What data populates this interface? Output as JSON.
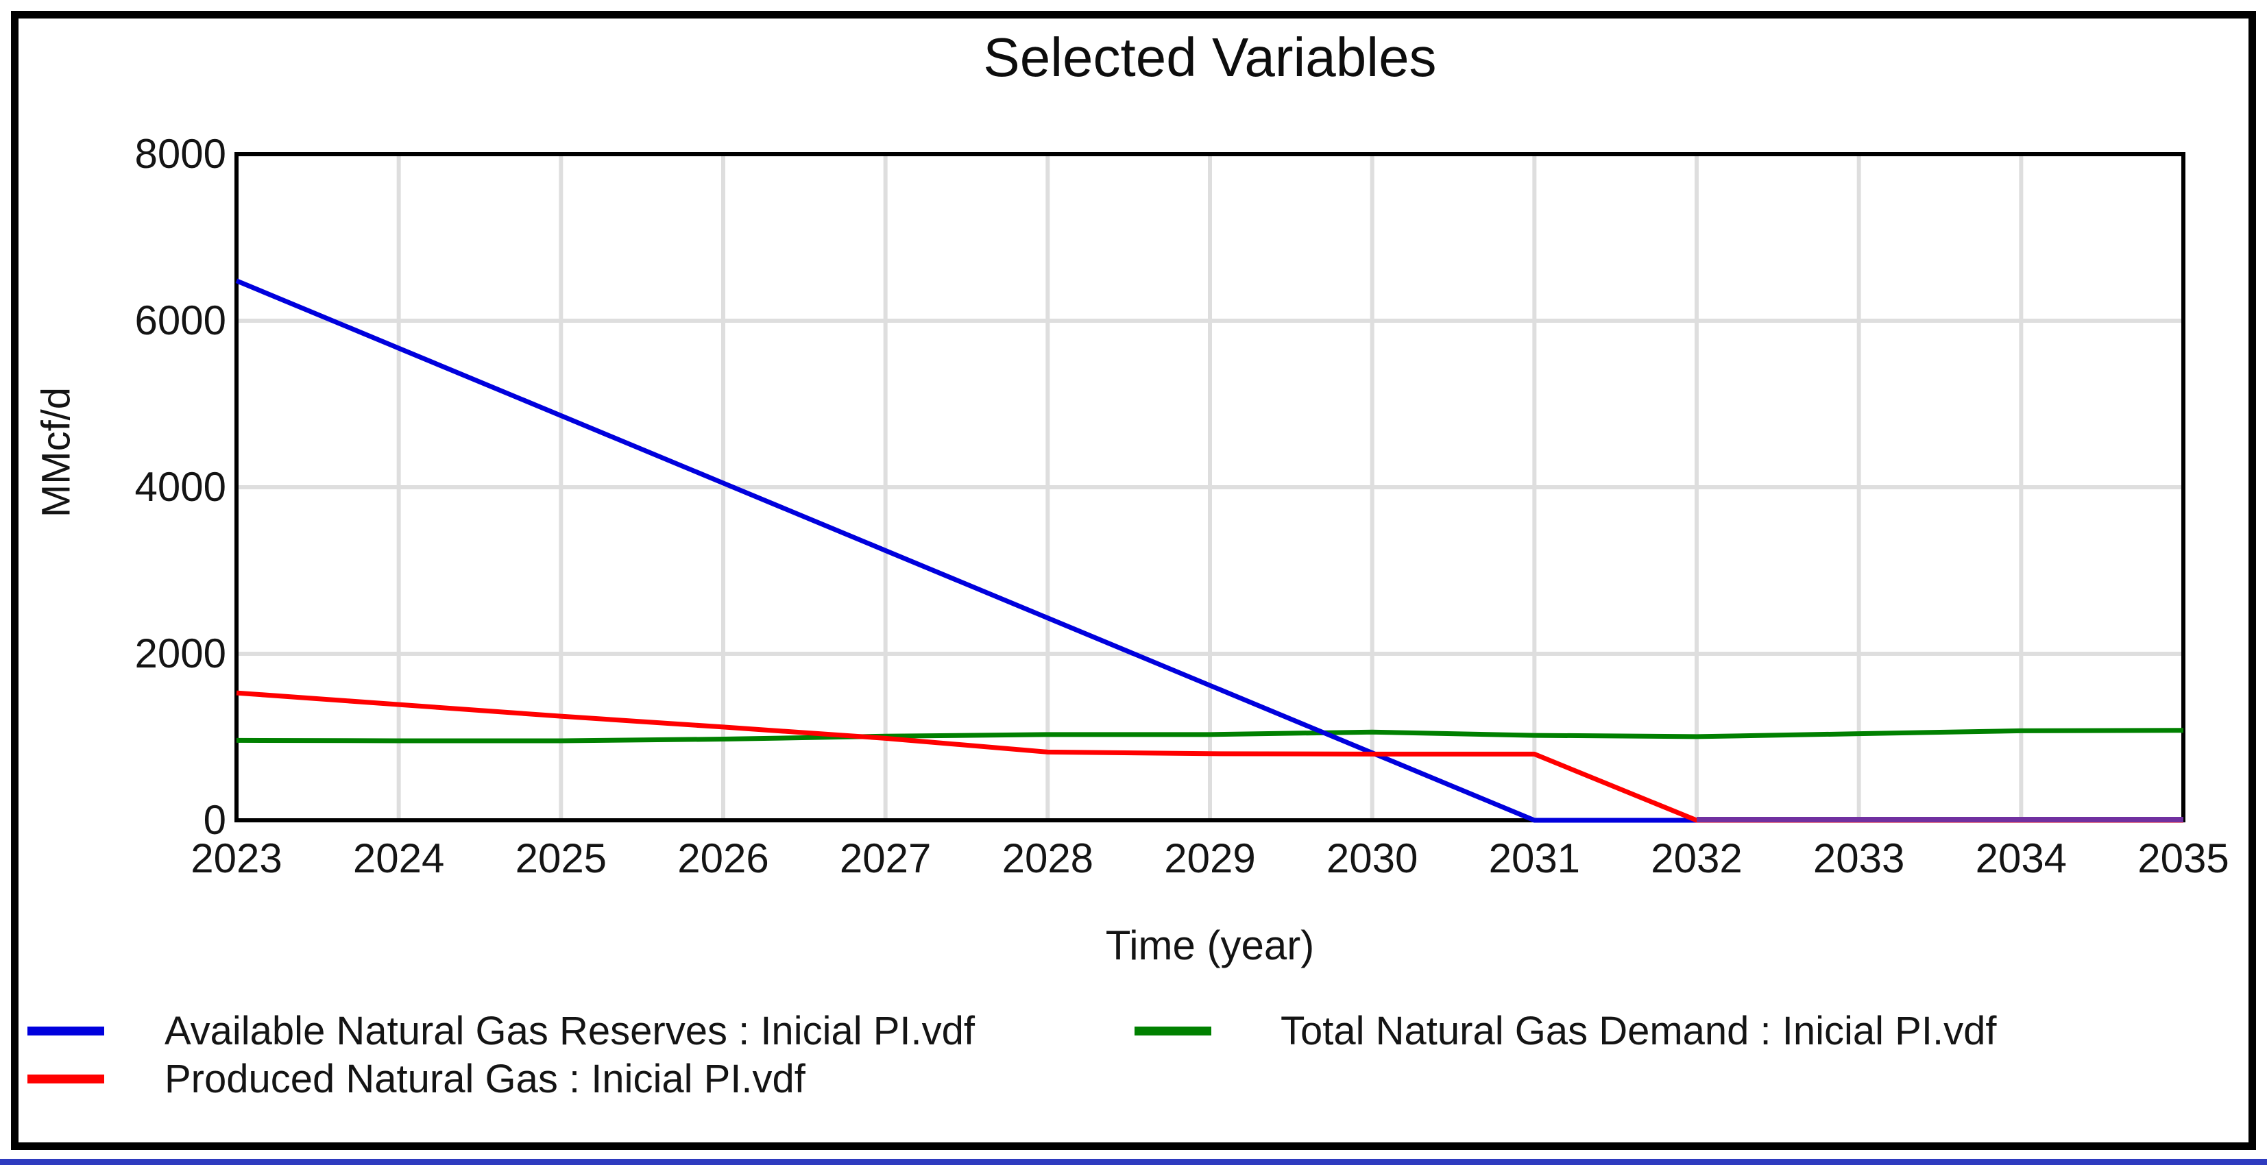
{
  "title": "Selected Variables",
  "axes": {
    "ylabel": "MMcf/d",
    "xlabel": "Time (year)",
    "y_ticks": [
      8000,
      6000,
      4000,
      2000,
      0
    ],
    "x_ticks": [
      2023,
      2024,
      2025,
      2026,
      2027,
      2028,
      2029,
      2030,
      2031,
      2032,
      2033,
      2034,
      2035
    ]
  },
  "colors": {
    "reserves": "#0000dd",
    "produced": "#ff0000",
    "demand": "#008000",
    "overlap": "#7030a0",
    "grid": "#dedede",
    "frame": "#000000",
    "bottom_strip": "#2e3bbf"
  },
  "chart_data": {
    "type": "line",
    "title": "Selected Variables",
    "xlabel": "Time (year)",
    "ylabel": "MMcf/d",
    "xlim": [
      2023,
      2035
    ],
    "ylim": [
      0,
      8000
    ],
    "grid": true,
    "legend_position": "bottom",
    "x": [
      2023,
      2024,
      2025,
      2026,
      2027,
      2028,
      2029,
      2030,
      2031,
      2032,
      2033,
      2034,
      2035
    ],
    "series": [
      {
        "name": "Available Natural Gas Reserves : Inicial PI.vdf",
        "color_key": "reserves",
        "values": [
          6480,
          5670,
          4860,
          4050,
          3240,
          2430,
          1620,
          810,
          0,
          0,
          0,
          0,
          0
        ]
      },
      {
        "name": "Produced Natural Gas : Inicial PI.vdf",
        "color_key": "produced",
        "values": [
          1530,
          1390,
          1250,
          1120,
          985,
          820,
          800,
          795,
          795,
          0,
          0,
          0,
          0
        ]
      },
      {
        "name": "Total Natural Gas Demand : Inicial PI.vdf",
        "color_key": "demand",
        "values": [
          960,
          955,
          955,
          975,
          1010,
          1030,
          1030,
          1060,
          1020,
          1005,
          1040,
          1075,
          1080
        ]
      }
    ],
    "annotations": [
      "Reserves and Produced series overlap at zero from 2032 onward, rendering as a purple line on the x-axis"
    ]
  },
  "legend": {
    "items": [
      {
        "label": "Available Natural Gas Reserves : Inicial PI.vdf",
        "color_key": "reserves"
      },
      {
        "label": "Produced Natural Gas : Inicial PI.vdf",
        "color_key": "produced"
      },
      {
        "label": "Total Natural Gas Demand : Inicial PI.vdf",
        "color_key": "demand"
      }
    ]
  }
}
